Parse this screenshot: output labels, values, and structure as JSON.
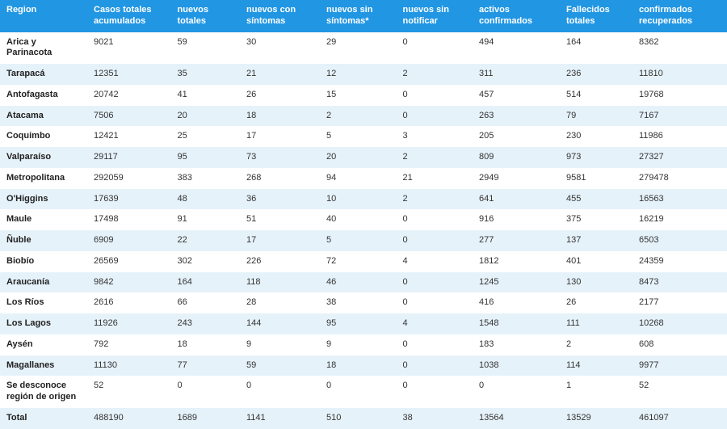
{
  "table": {
    "columns": [
      "Region",
      "Casos totales acumulados",
      "Casos nuevos totales",
      "Casos nuevos con síntomas",
      "Casos nuevos sin síntomas*",
      "Casos nuevos sin notificar",
      "Casos activos confirmados",
      "Fallecidos totales",
      "Casos confirmados recuperados"
    ],
    "header_visible_lines": [
      [
        "Region"
      ],
      [
        "Casos totales",
        "acumulados"
      ],
      [
        "nuevos",
        "totales"
      ],
      [
        "nuevos con",
        "síntomas"
      ],
      [
        "nuevos sin",
        "síntomas*"
      ],
      [
        "nuevos sin",
        "notificar"
      ],
      [
        "activos",
        "confirmados"
      ],
      [
        "Fallecidos",
        "totales"
      ],
      [
        "confirmados",
        "recuperados"
      ]
    ],
    "rows": [
      [
        "Arica y Parinacota",
        "9021",
        "59",
        "30",
        "29",
        "0",
        "494",
        "164",
        "8362"
      ],
      [
        "Tarapacá",
        "12351",
        "35",
        "21",
        "12",
        "2",
        "311",
        "236",
        "11810"
      ],
      [
        "Antofagasta",
        "20742",
        "41",
        "26",
        "15",
        "0",
        "457",
        "514",
        "19768"
      ],
      [
        "Atacama",
        "7506",
        "20",
        "18",
        "2",
        "0",
        "263",
        "79",
        "7167"
      ],
      [
        "Coquimbo",
        "12421",
        "25",
        "17",
        "5",
        "3",
        "205",
        "230",
        "11986"
      ],
      [
        "Valparaíso",
        "29117",
        "95",
        "73",
        "20",
        "2",
        "809",
        "973",
        "27327"
      ],
      [
        "Metropolitana",
        "292059",
        "383",
        "268",
        "94",
        "21",
        "2949",
        "9581",
        "279478"
      ],
      [
        "O'Higgins",
        "17639",
        "48",
        "36",
        "10",
        "2",
        "641",
        "455",
        "16563"
      ],
      [
        "Maule",
        "17498",
        "91",
        "51",
        "40",
        "0",
        "916",
        "375",
        "16219"
      ],
      [
        "Ñuble",
        "6909",
        "22",
        "17",
        "5",
        "0",
        "277",
        "137",
        "6503"
      ],
      [
        "Biobío",
        "26569",
        "302",
        "226",
        "72",
        "4",
        "1812",
        "401",
        "24359"
      ],
      [
        "Araucanía",
        "9842",
        "164",
        "118",
        "46",
        "0",
        "1245",
        "130",
        "8473"
      ],
      [
        "Los Ríos",
        "2616",
        "66",
        "28",
        "38",
        "0",
        "416",
        "26",
        "2177"
      ],
      [
        "Los Lagos",
        "11926",
        "243",
        "144",
        "95",
        "4",
        "1548",
        "111",
        "10268"
      ],
      [
        "Aysén",
        "792",
        "18",
        "9",
        "9",
        "0",
        "183",
        "2",
        "608"
      ],
      [
        "Magallanes",
        "11130",
        "77",
        "59",
        "18",
        "0",
        "1038",
        "114",
        "9977"
      ],
      [
        "Se desconoce región de origen",
        "52",
        "0",
        "0",
        "0",
        "0",
        "0",
        "1",
        "52"
      ],
      [
        "Total",
        "488190",
        "1689",
        "1141",
        "510",
        "38",
        "13564",
        "13529",
        "461097"
      ]
    ],
    "styling": {
      "header_bg": "#2196e3",
      "header_text_color": "#ffffff",
      "row_even_bg": "#ffffff",
      "row_odd_bg": "#e6f2fa",
      "cell_text_color": "#333333",
      "region_font_weight": "700",
      "font_size_pt": 11,
      "column_widths_pct": [
        12,
        11.5,
        9.5,
        11,
        10.5,
        10.5,
        12,
        10,
        13
      ]
    }
  }
}
